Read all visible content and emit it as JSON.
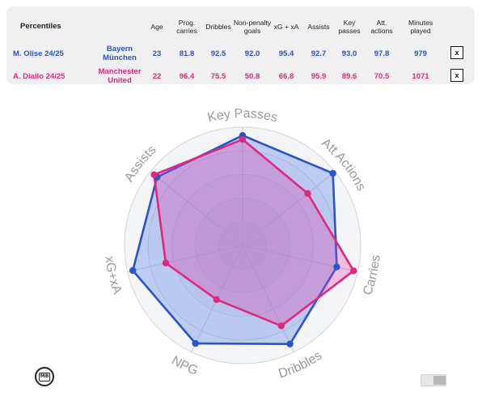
{
  "table": {
    "title": "Percentiles",
    "headers": [
      "Age",
      "Prog. carries",
      "Dribbles",
      "Non-penalty goals",
      "xG + xA",
      "Assists",
      "Key passes",
      "Att. actions",
      "Minutes played"
    ],
    "rows": [
      {
        "player": "M. Olise 24/25",
        "team": "Bayern München",
        "values": [
          "23",
          "81.8",
          "92.5",
          "92.0",
          "95.4",
          "92.7",
          "93.0",
          "97.8",
          "979"
        ],
        "remove_label": "x",
        "color": "#2a55c8"
      },
      {
        "player": "A. Diallo 24/25",
        "team": "Manchester United",
        "values": [
          "22",
          "96.4",
          "75.5",
          "50.8",
          "66.8",
          "95.9",
          "89.6",
          "70.5",
          "1071"
        ],
        "remove_label": "x",
        "color": "#e0287f"
      }
    ]
  },
  "chart_data": {
    "type": "radar",
    "axes": [
      "Key Passes",
      "Att Actions",
      "Carries",
      "Dribbles",
      "NPG",
      "xG+xA",
      "Assists"
    ],
    "range": [
      0,
      100
    ],
    "series": [
      {
        "name": "M. Olise 24/25",
        "color": "#2a55c8",
        "values": [
          93.0,
          97.8,
          81.8,
          92.5,
          92.0,
          95.4,
          92.7
        ]
      },
      {
        "name": "A. Diallo 24/25",
        "color": "#e0287f",
        "values": [
          89.6,
          70.5,
          96.4,
          75.5,
          50.8,
          66.8,
          95.9
        ]
      }
    ]
  },
  "footer": {
    "logo_text": "MB"
  }
}
